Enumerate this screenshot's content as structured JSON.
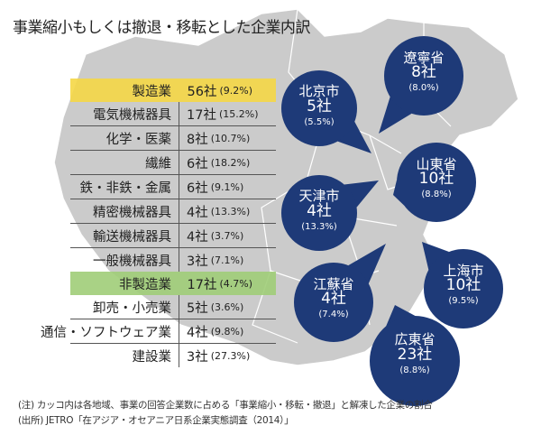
{
  "title": "事業縮小もしくは撤退・移転とした企業内訳",
  "chart_data": {
    "type": "table",
    "title": "事業縮小もしくは撤退・移転とした企業内訳",
    "industries": [
      {
        "label": "製造業",
        "value": "56社",
        "pct": "(9.2%)",
        "kind": "category"
      },
      {
        "label": "電気機械器具",
        "value": "17社",
        "pct": "(15.2%)"
      },
      {
        "label": "化学・医薬",
        "value": "8社",
        "pct": "(10.7%)"
      },
      {
        "label": "繊維",
        "value": "6社",
        "pct": "(18.2%)"
      },
      {
        "label": "鉄・非鉄・金属",
        "value": "6社",
        "pct": "(9.1%)"
      },
      {
        "label": "精密機械器具",
        "value": "4社",
        "pct": "(13.3%)"
      },
      {
        "label": "輸送機械器具",
        "value": "4社",
        "pct": "(3.7%)"
      },
      {
        "label": "一般機械器具",
        "value": "3社",
        "pct": "(7.1%)"
      },
      {
        "label": "非製造業",
        "value": "17社",
        "pct": "(4.7%)",
        "kind": "category"
      },
      {
        "label": "卸売・小売業",
        "value": "5社",
        "pct": "(3.6%)"
      },
      {
        "label": "通信・ソフトウェア業",
        "value": "4社",
        "pct": "(9.8%)"
      },
      {
        "label": "建設業",
        "value": "3社",
        "pct": "(27.3%)"
      }
    ],
    "regions": [
      {
        "name": "遼寧省",
        "count": "8社",
        "pct": "(8.0%)"
      },
      {
        "name": "北京市",
        "count": "5社",
        "pct": "(5.5%)"
      },
      {
        "name": "山東省",
        "count": "10社",
        "pct": "(8.8%)"
      },
      {
        "name": "天津市",
        "count": "4社",
        "pct": "(13.3%)"
      },
      {
        "name": "江蘇省",
        "count": "4社",
        "pct": "(7.4%)"
      },
      {
        "name": "上海市",
        "count": "10社",
        "pct": "(9.5%)"
      },
      {
        "name": "広東省",
        "count": "23社",
        "pct": "(8.8%)"
      }
    ]
  },
  "notes": [
    "(注) カッコ内は各地域、事業の回答企業数に占める「事業縮小・移転・撤退」と解凍した企業の割合",
    "(出所) JETRO「在アジア・オセアニア日系企業実態調査（2014）」"
  ],
  "colors": {
    "manufacturing": "#f5d746",
    "non_manufacturing": "#a0cd78",
    "bubble": "#1e3a78",
    "map": "#c8c8c8"
  }
}
